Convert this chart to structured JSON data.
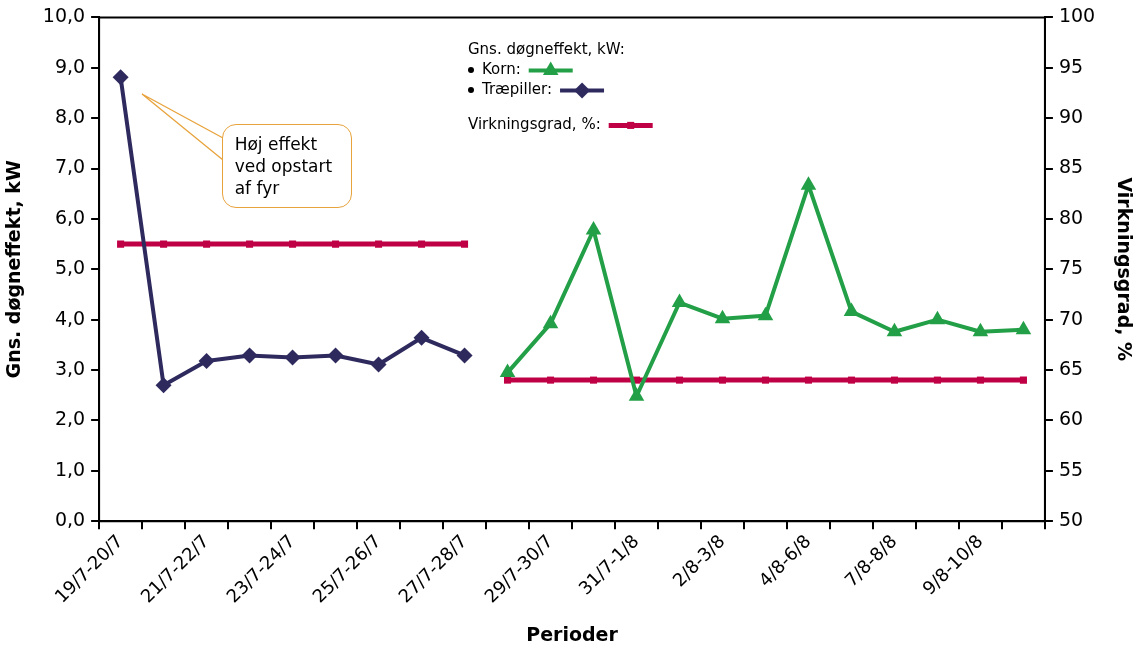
{
  "chart_data": {
    "type": "line",
    "xlabel": "Perioder",
    "ylabel": "Gns. døgneffekt, kW",
    "y2label": "Virkningsgrad, %",
    "legend_title": "Gns. døgneffekt, kW:",
    "legend": "top",
    "grid": false,
    "categories": [
      "19/7-20/7",
      null,
      "21/7-22/7",
      null,
      "23/7-24/7",
      null,
      "25/7-26/7",
      null,
      "27/7-28/7",
      null,
      "29/7-30/7",
      null,
      "31/7-1/8",
      null,
      "2/8-3/8",
      null,
      "4/8-6/8",
      null,
      "7/8-8/8",
      null,
      "9/8-10/8",
      null
    ],
    "series": [
      {
        "name": "Korn:",
        "color": "#23a047",
        "marker": "triangle",
        "values": [
          null,
          null,
          null,
          null,
          null,
          null,
          null,
          null,
          null,
          2.95,
          3.92,
          5.78,
          2.48,
          4.34,
          4.02,
          4.08,
          6.67,
          4.16,
          3.76,
          4.0,
          3.76,
          3.8
        ]
      },
      {
        "name": "Træpiller:",
        "color": "#2e2a5e",
        "marker": "diamond",
        "values": [
          8.81,
          2.7,
          3.18,
          3.29,
          3.25,
          3.29,
          3.11,
          3.64,
          3.29,
          null,
          null,
          null,
          null,
          null,
          null,
          null,
          null,
          null,
          null,
          null,
          null,
          null
        ]
      },
      {
        "name": "Virkningsgrad, %:",
        "color": "#c00045",
        "marker": "square",
        "axis": "y2",
        "values": [
          77.5,
          77.5,
          77.5,
          77.5,
          77.5,
          77.5,
          77.5,
          77.5,
          77.5,
          null,
          null,
          null,
          null,
          null,
          null,
          null,
          null,
          null,
          null,
          null,
          null,
          null
        ]
      },
      {
        "color": "#c00045",
        "marker": "square",
        "axis": "y2",
        "values": [
          null,
          null,
          null,
          null,
          null,
          null,
          null,
          null,
          null,
          64,
          64,
          64,
          64,
          64,
          64,
          64,
          64,
          64,
          64,
          64,
          64,
          64
        ]
      }
    ],
    "ylim": [
      0,
      10
    ],
    "yticks": [
      {
        "value": 0,
        "label": "0,0"
      },
      {
        "value": 1,
        "label": "1,0"
      },
      {
        "value": 2,
        "label": "2,0"
      },
      {
        "value": 3,
        "label": "3,0"
      },
      {
        "value": 4,
        "label": "4,0"
      },
      {
        "value": 5,
        "label": "5,0"
      },
      {
        "value": 6,
        "label": "6,0"
      },
      {
        "value": 7,
        "label": "7,0"
      },
      {
        "value": 8,
        "label": "8,0"
      },
      {
        "value": 9,
        "label": "9,0"
      },
      {
        "value": 10,
        "label": "10,0"
      }
    ],
    "y2lim": [
      50,
      100
    ],
    "y2ticks": [
      50,
      55,
      60,
      65,
      70,
      75,
      80,
      85,
      90,
      95,
      100
    ],
    "annotations": [
      "Høj effekt ved opstart af fyr"
    ]
  }
}
